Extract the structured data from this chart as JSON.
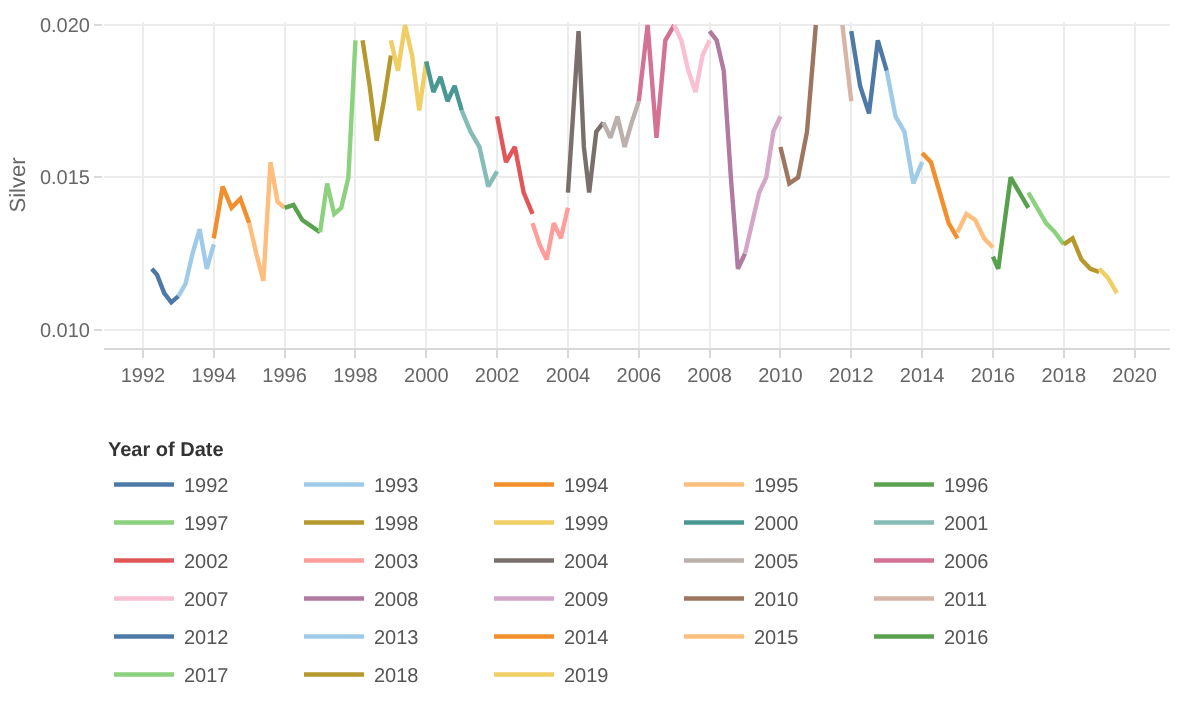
{
  "chart_data": {
    "type": "line",
    "ylabel": "Silver",
    "legend_title": "Year of Date",
    "legend": "bottom",
    "grid": true,
    "marker": "none",
    "line_style": "solid",
    "xlim": [
      1990.9,
      2021
    ],
    "xticks": [
      1992,
      1994,
      1996,
      1998,
      2000,
      2002,
      2004,
      2006,
      2008,
      2010,
      2012,
      2014,
      2016,
      2018,
      2020
    ],
    "ylim": [
      0.0094,
      0.0201
    ],
    "yticks": [
      {
        "value": 0.01,
        "label": "0.010"
      },
      {
        "value": 0.015,
        "label": "0.015"
      },
      {
        "value": 0.02,
        "label": "0.020"
      }
    ],
    "series": [
      {
        "name": "1992",
        "color": "#4e79a7",
        "x": [
          1992.25,
          1992.4,
          1992.6,
          1992.8,
          1993.0
        ],
        "values": [
          0.012,
          0.0118,
          0.0112,
          0.0109,
          0.0111
        ]
      },
      {
        "name": "1993",
        "color": "#a0cbe8",
        "x": [
          1993.0,
          1993.2,
          1993.4,
          1993.6,
          1993.8,
          1994.0
        ],
        "values": [
          0.0111,
          0.0115,
          0.0125,
          0.0133,
          0.012,
          0.0128
        ]
      },
      {
        "name": "1994",
        "color": "#f28e2b",
        "x": [
          1994.0,
          1994.25,
          1994.5,
          1994.75,
          1995.0
        ],
        "values": [
          0.013,
          0.0147,
          0.014,
          0.0143,
          0.0135
        ]
      },
      {
        "name": "1995",
        "color": "#ffbe7d",
        "x": [
          1995.0,
          1995.2,
          1995.4,
          1995.6,
          1995.8,
          1996.0
        ],
        "values": [
          0.0135,
          0.0125,
          0.0116,
          0.0155,
          0.0142,
          0.014
        ]
      },
      {
        "name": "1996",
        "color": "#5aa250",
        "x": [
          1996.0,
          1996.25,
          1996.5,
          1996.75,
          1997.0
        ],
        "values": [
          0.014,
          0.0141,
          0.0136,
          0.0134,
          0.0132
        ]
      },
      {
        "name": "1997",
        "color": "#8cd17d",
        "x": [
          1997.0,
          1997.2,
          1997.4,
          1997.6,
          1997.8,
          1998.0
        ],
        "values": [
          0.0132,
          0.0148,
          0.0138,
          0.014,
          0.015,
          0.0195
        ]
      },
      {
        "name": "1998",
        "color": "#b6992d",
        "x": [
          1998.2,
          1998.4,
          1998.6,
          1998.8,
          1999.0
        ],
        "values": [
          0.0195,
          0.018,
          0.0162,
          0.0175,
          0.019
        ]
      },
      {
        "name": "1999",
        "color": "#f1ce63",
        "x": [
          1999.0,
          1999.2,
          1999.4,
          1999.6,
          1999.8,
          2000.0
        ],
        "values": [
          0.0195,
          0.0185,
          0.02,
          0.019,
          0.0172,
          0.0188
        ]
      },
      {
        "name": "2000",
        "color": "#499894",
        "x": [
          2000.0,
          2000.2,
          2000.4,
          2000.6,
          2000.8,
          2001.0
        ],
        "values": [
          0.0188,
          0.0178,
          0.0183,
          0.0175,
          0.018,
          0.0172
        ]
      },
      {
        "name": "2001",
        "color": "#86bcb6",
        "x": [
          2001.0,
          2001.25,
          2001.5,
          2001.75,
          2002.0
        ],
        "values": [
          0.0172,
          0.0165,
          0.016,
          0.0147,
          0.0152
        ]
      },
      {
        "name": "2002",
        "color": "#e15759",
        "x": [
          2002.0,
          2002.25,
          2002.5,
          2002.75,
          2003.0
        ],
        "values": [
          0.017,
          0.0155,
          0.016,
          0.0145,
          0.0138
        ]
      },
      {
        "name": "2003",
        "color": "#ff9d9a",
        "x": [
          2003.0,
          2003.2,
          2003.4,
          2003.6,
          2003.8,
          2004.0
        ],
        "values": [
          0.0135,
          0.0128,
          0.0123,
          0.0135,
          0.013,
          0.014
        ]
      },
      {
        "name": "2004",
        "color": "#79706e",
        "x": [
          2004.0,
          2004.3,
          2004.45,
          2004.6,
          2004.8,
          2005.0
        ],
        "values": [
          0.0145,
          0.0198,
          0.016,
          0.0145,
          0.0165,
          0.0168
        ]
      },
      {
        "name": "2005",
        "color": "#bab0ac",
        "x": [
          2005.0,
          2005.2,
          2005.4,
          2005.6,
          2005.8,
          2006.0
        ],
        "values": [
          0.0168,
          0.0163,
          0.017,
          0.016,
          0.0168,
          0.0175
        ]
      },
      {
        "name": "2006",
        "color": "#d37295",
        "x": [
          2006.0,
          2006.25,
          2006.5,
          2006.75,
          2007.0
        ],
        "values": [
          0.0175,
          0.02,
          0.0163,
          0.0195,
          0.02
        ]
      },
      {
        "name": "2007",
        "color": "#fabfd2",
        "x": [
          2007.0,
          2007.2,
          2007.4,
          2007.6,
          2007.8,
          2008.0
        ],
        "values": [
          0.02,
          0.0195,
          0.0185,
          0.0178,
          0.019,
          0.0195
        ]
      },
      {
        "name": "2008",
        "color": "#b07aa1",
        "x": [
          2008.0,
          2008.2,
          2008.4,
          2008.6,
          2008.8,
          2009.0
        ],
        "values": [
          0.0198,
          0.0195,
          0.0185,
          0.015,
          0.012,
          0.0125
        ]
      },
      {
        "name": "2009",
        "color": "#d4a6c8",
        "x": [
          2009.0,
          2009.2,
          2009.4,
          2009.6,
          2009.8,
          2010.0
        ],
        "values": [
          0.0125,
          0.0135,
          0.0145,
          0.015,
          0.0165,
          0.017
        ]
      },
      {
        "name": "2010",
        "color": "#9d7660",
        "x": [
          2010.0,
          2010.25,
          2010.5,
          2010.75,
          2011.0
        ],
        "values": [
          0.016,
          0.0148,
          0.015,
          0.0165,
          0.02
        ]
      },
      {
        "name": "2011",
        "color": "#d7b5a6",
        "x": [
          2011.75,
          2012.0
        ],
        "values": [
          0.02,
          0.0175
        ]
      },
      {
        "name": "2012",
        "color": "#4e79a7",
        "x": [
          2012.0,
          2012.25,
          2012.5,
          2012.75,
          2013.0
        ],
        "values": [
          0.0198,
          0.018,
          0.0171,
          0.0195,
          0.0185
        ]
      },
      {
        "name": "2013",
        "color": "#a0cbe8",
        "x": [
          2013.0,
          2013.25,
          2013.5,
          2013.75,
          2014.0
        ],
        "values": [
          0.0185,
          0.017,
          0.0165,
          0.0148,
          0.0155
        ]
      },
      {
        "name": "2014",
        "color": "#f28e2b",
        "x": [
          2014.0,
          2014.25,
          2014.5,
          2014.75,
          2015.0
        ],
        "values": [
          0.0158,
          0.0155,
          0.0145,
          0.0135,
          0.013
        ]
      },
      {
        "name": "2015",
        "color": "#ffbe7d",
        "x": [
          2015.0,
          2015.25,
          2015.5,
          2015.75,
          2016.0
        ],
        "values": [
          0.0132,
          0.0138,
          0.0136,
          0.013,
          0.0127
        ]
      },
      {
        "name": "2016",
        "color": "#58a04e",
        "x": [
          2016.0,
          2016.15,
          2016.5,
          2016.75,
          2017.0
        ],
        "values": [
          0.0124,
          0.012,
          0.015,
          0.0145,
          0.014
        ]
      },
      {
        "name": "2017",
        "color": "#8cd17d",
        "x": [
          2017.0,
          2017.25,
          2017.5,
          2017.75,
          2018.0
        ],
        "values": [
          0.0145,
          0.014,
          0.0135,
          0.0132,
          0.0128
        ]
      },
      {
        "name": "2018",
        "color": "#b6992d",
        "x": [
          2018.0,
          2018.25,
          2018.5,
          2018.75,
          2019.0
        ],
        "values": [
          0.0128,
          0.013,
          0.0123,
          0.012,
          0.0119
        ]
      },
      {
        "name": "2019",
        "color": "#f1ce63",
        "x": [
          2019.0,
          2019.25,
          2019.5
        ],
        "values": [
          0.012,
          0.0117,
          0.0112
        ]
      }
    ]
  }
}
